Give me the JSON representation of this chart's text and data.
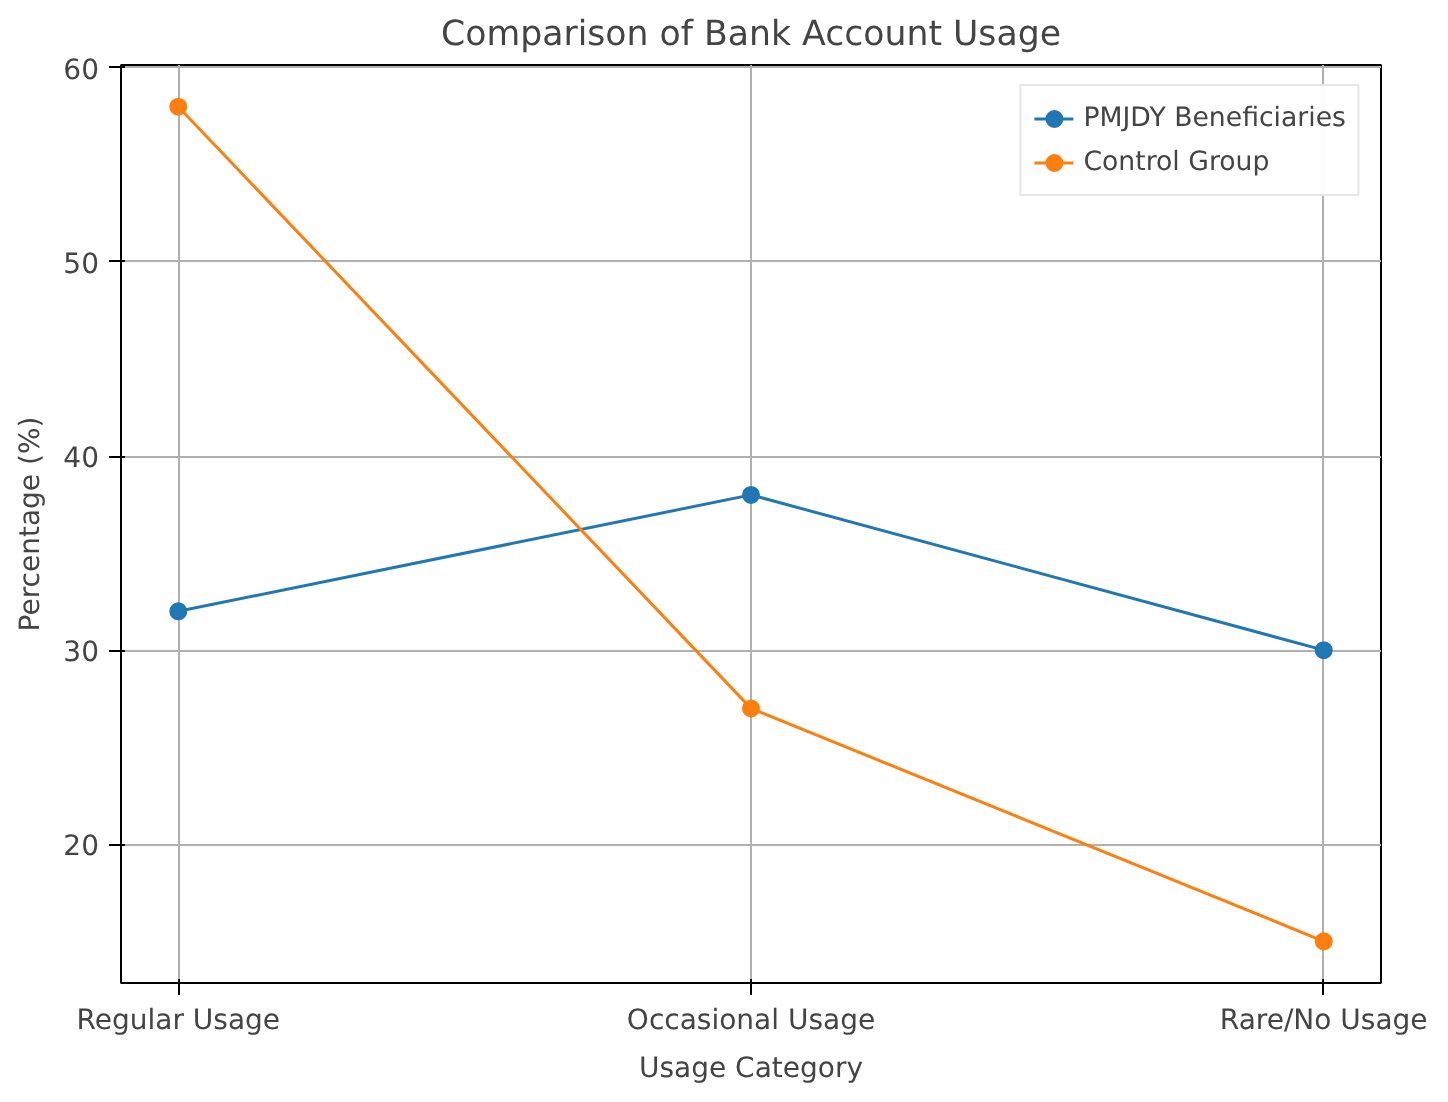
{
  "chart_data": {
    "type": "line",
    "title": "Comparison of Bank Account Usage",
    "xlabel": "Usage Category",
    "ylabel": "Percentage (%)",
    "categories": [
      "Regular Usage",
      "Occasional Usage",
      "Rare/No Usage"
    ],
    "series": [
      {
        "name": "PMJDY Beneficiaries",
        "color": "#1f77b4",
        "values": [
          32,
          38,
          30
        ]
      },
      {
        "name": "Control Group",
        "color": "#ff7f0e",
        "values": [
          58,
          27,
          15
        ]
      }
    ],
    "ylim": [
      12.85,
      60.15
    ],
    "yticks": [
      20,
      30,
      40,
      50,
      60
    ],
    "grid": true,
    "legend": "top right",
    "marker": "circle",
    "line_style": "solid"
  }
}
